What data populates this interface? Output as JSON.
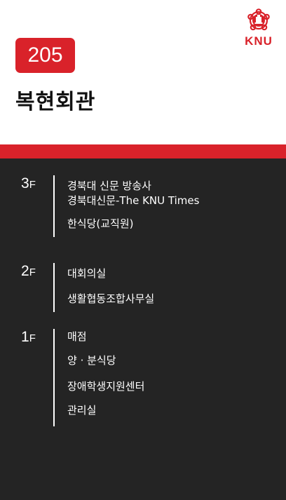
{
  "header": {
    "building_number": "205",
    "building_name": "복현회관",
    "logo_text": "KNU"
  },
  "colors": {
    "accent": "#d9222a",
    "background": "#242424",
    "header_bg": "#ffffff"
  },
  "floors": [
    {
      "number": "3",
      "suffix": "F",
      "items": [
        "경북대 신문 방송사",
        "경북대신문-The KNU Times",
        "한식당(교직원)"
      ]
    },
    {
      "number": "2",
      "suffix": "F",
      "items": [
        "대회의실",
        "생활협동조합사무실"
      ]
    },
    {
      "number": "1",
      "suffix": "F",
      "items": [
        "매점",
        "양 · 분식당",
        "장애학생지원센터",
        "관리실"
      ]
    }
  ]
}
